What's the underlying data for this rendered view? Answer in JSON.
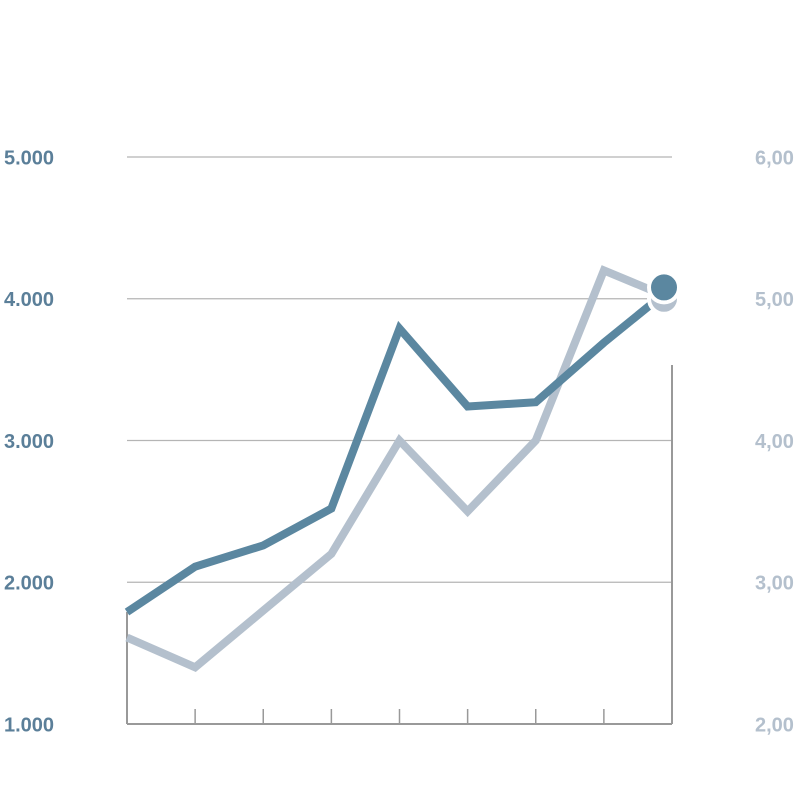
{
  "chart_data": {
    "type": "line",
    "categories": [
      null,
      null,
      null,
      null,
      null,
      null,
      null,
      null,
      null
    ],
    "series": [
      {
        "color": "#5b87a0",
        "axis": "y",
        "values": [
          1790,
          2110,
          2260,
          2520,
          3790,
          3240,
          3270,
          3690,
          4080
        ]
      },
      {
        "color": "#b4c0cd",
        "axis": "y2",
        "values": [
          2.61,
          2.4,
          2.8,
          3.2,
          4.0,
          3.5,
          4.0,
          5.2,
          5.0
        ]
      }
    ],
    "ylim": [
      1000,
      5000
    ],
    "yticks": [
      {
        "value": 1000,
        "label": "1.000"
      },
      {
        "value": 2000,
        "label": "2.000"
      },
      {
        "value": 3000,
        "label": "3.000"
      },
      {
        "value": 4000,
        "label": "4.000"
      },
      {
        "value": 5000,
        "label": "5.000"
      }
    ],
    "y2lim": [
      2,
      6
    ],
    "y2ticks": [
      {
        "value": 2,
        "label": "2,00"
      },
      {
        "value": 3,
        "label": "3,00"
      },
      {
        "value": 4,
        "label": "4,00"
      },
      {
        "value": 5,
        "label": "5,00"
      },
      {
        "value": 6,
        "label": "6,00"
      }
    ],
    "grid": true
  }
}
